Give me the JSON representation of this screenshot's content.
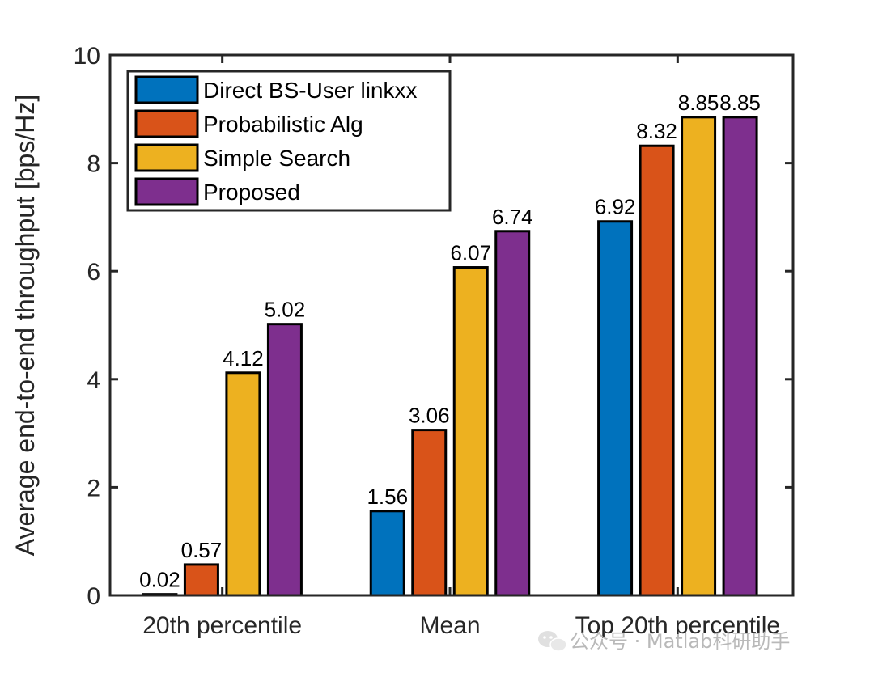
{
  "chart_data": {
    "type": "bar",
    "title": "",
    "xlabel": "",
    "ylabel": "Average end-to-end throughput [bps/Hz]",
    "categories": [
      "20th percentile",
      "Mean",
      "Top 20th percentile"
    ],
    "ylim": [
      0,
      10
    ],
    "yticks": [
      0,
      2,
      4,
      6,
      8,
      10
    ],
    "grid": false,
    "legend_position": "top-left",
    "series": [
      {
        "name": "Direct BS-User linkxx",
        "color": "#0072BD",
        "values": [
          0.02,
          1.56,
          6.92
        ],
        "labels": [
          "0.02",
          "1.56",
          "6.92"
        ]
      },
      {
        "name": "Probabilistic Alg",
        "color": "#D95319",
        "values": [
          0.57,
          3.06,
          8.32
        ],
        "labels": [
          "0.57",
          "3.06",
          "8.32"
        ]
      },
      {
        "name": "Simple Search",
        "color": "#EDB120",
        "values": [
          4.12,
          6.07,
          8.85
        ],
        "labels": [
          "4.12",
          "6.07",
          "8.85"
        ]
      },
      {
        "name": "Proposed",
        "color": "#7E2F8E",
        "values": [
          5.02,
          6.74,
          8.85
        ],
        "labels": [
          "5.02",
          "6.74",
          "8.85"
        ]
      }
    ]
  },
  "watermark": {
    "text": "公众号 · Matlab科研助手",
    "icon": "wechat-icon"
  }
}
